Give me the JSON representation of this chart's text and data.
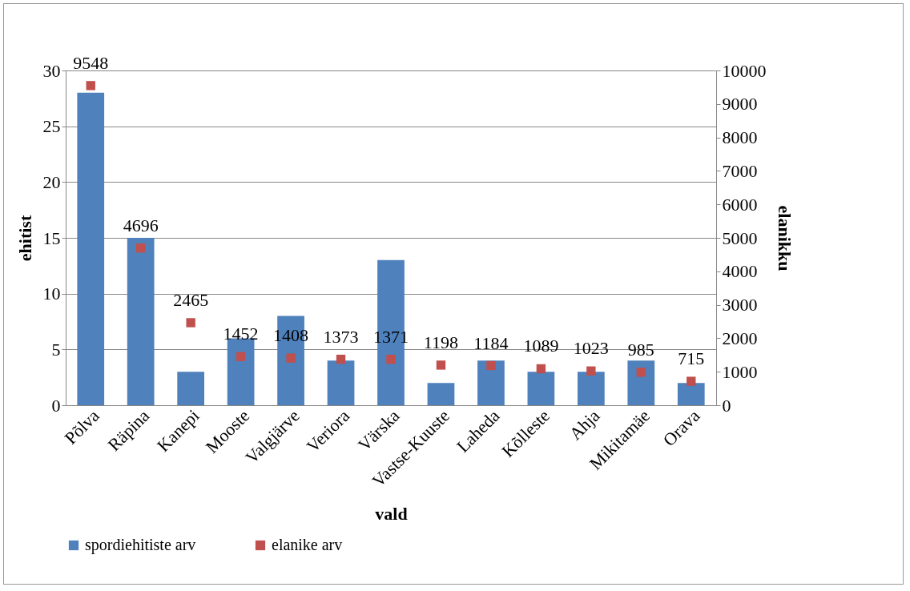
{
  "chart_data": {
    "type": "bar",
    "xlabel": "vald",
    "ylabel": "ehitist",
    "y2label": "elanikku",
    "categories": [
      "Põlva",
      "Räpina",
      "Kanepi",
      "Mooste",
      "Valgjärve",
      "Veriora",
      "Värska",
      "Vastse-Kuuste",
      "Laheda",
      "Kõlleste",
      "Ahja",
      "Mikitamäe",
      "Orava"
    ],
    "series": [
      {
        "name": "spordiehitiste arv",
        "color": "#4f81bd",
        "values": [
          28,
          15,
          3,
          6,
          8,
          4,
          13,
          2,
          4,
          3,
          3,
          4,
          2
        ]
      },
      {
        "name": "elanike arv",
        "type": "scatter",
        "axis": "y2",
        "marker": "square",
        "color": "#c0504d",
        "values": [
          9548,
          4696,
          2465,
          1452,
          1408,
          1373,
          1371,
          1198,
          1184,
          1089,
          1023,
          985,
          715
        ],
        "value_labels": [
          "9548",
          "4696",
          "2465",
          "1452",
          "1408",
          "1373",
          "1371",
          "1198",
          "1184",
          "1089",
          "1023",
          "985",
          "715"
        ]
      }
    ],
    "ylim": [
      0,
      30
    ],
    "yticks": [
      0,
      5,
      10,
      15,
      20,
      25,
      30
    ],
    "y2lim": [
      0,
      10000
    ],
    "y2ticks": [
      0,
      1000,
      2000,
      3000,
      4000,
      5000,
      6000,
      7000,
      8000,
      9000,
      10000
    ],
    "grid": "y",
    "legend": "bottom"
  }
}
